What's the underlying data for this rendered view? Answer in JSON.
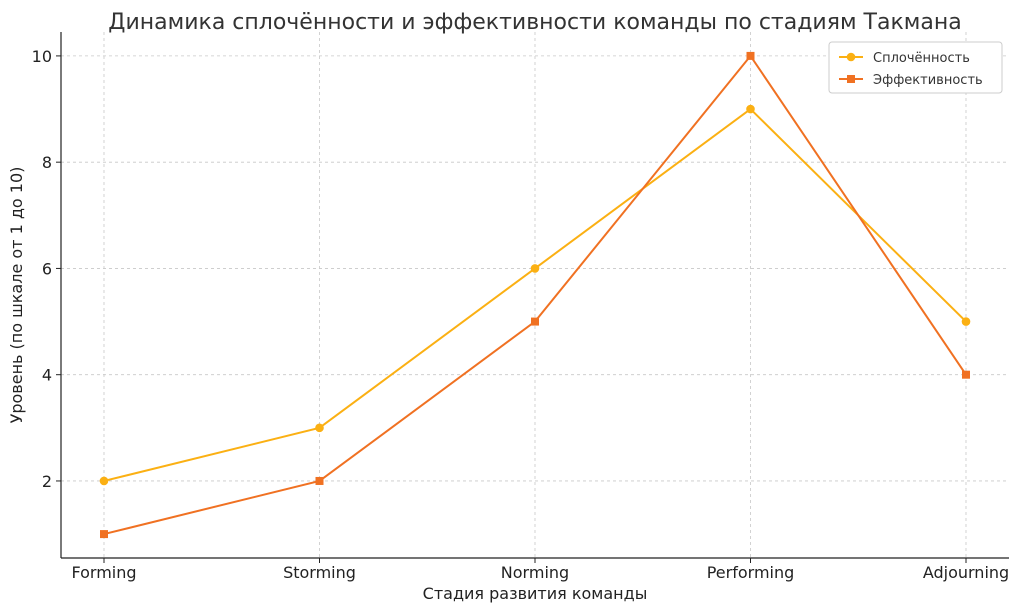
{
  "chart_data": {
    "type": "line",
    "title": "Динамика сплочённости и эффективности команды по стадиям Такмана",
    "xlabel": "Стадия развития команды",
    "ylabel": "Уровень (по шкале от 1 до 10)",
    "categories": [
      "Forming",
      "Storming",
      "Norming",
      "Performing",
      "Adjourning"
    ],
    "ylim": [
      0.55,
      10.45
    ],
    "yticks": [
      2,
      4,
      6,
      8,
      10
    ],
    "grid": true,
    "legend_position": "top-right",
    "series": [
      {
        "name": "Сплочённость",
        "values": [
          2,
          3,
          6,
          9,
          5
        ],
        "color": "#FBB013",
        "marker": "circle"
      },
      {
        "name": "Эффективность",
        "values": [
          1,
          2,
          5,
          10,
          4
        ],
        "color": "#F07122",
        "marker": "square"
      }
    ]
  }
}
